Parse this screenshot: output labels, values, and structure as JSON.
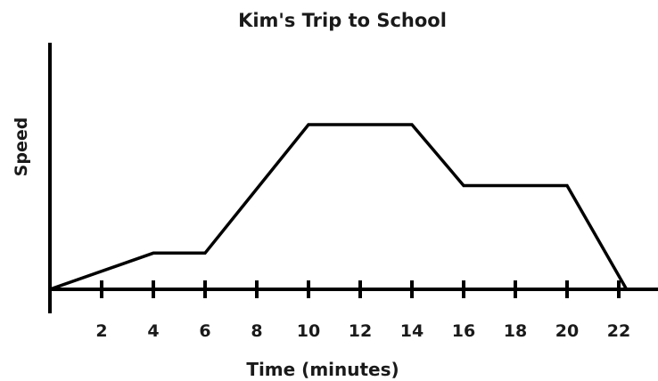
{
  "chart_data": {
    "type": "line",
    "title": "Kim's Trip to School",
    "xlabel": "Time (minutes)",
    "ylabel": "Speed",
    "xlim": [
      0,
      23.3
    ],
    "ylim": [
      0,
      10
    ],
    "x_ticks": [
      2,
      4,
      6,
      8,
      10,
      12,
      14,
      16,
      18,
      20,
      22
    ],
    "grid": false,
    "legend": "none",
    "line_color": "#000000",
    "series": [
      {
        "points": [
          {
            "x": 0,
            "y": 0
          },
          {
            "x": 4,
            "y": 2.2
          },
          {
            "x": 6,
            "y": 2.2
          },
          {
            "x": 10,
            "y": 10
          },
          {
            "x": 14,
            "y": 10
          },
          {
            "x": 16,
            "y": 6.3
          },
          {
            "x": 20,
            "y": 6.3
          },
          {
            "x": 22.3,
            "y": 0
          }
        ]
      }
    ]
  }
}
